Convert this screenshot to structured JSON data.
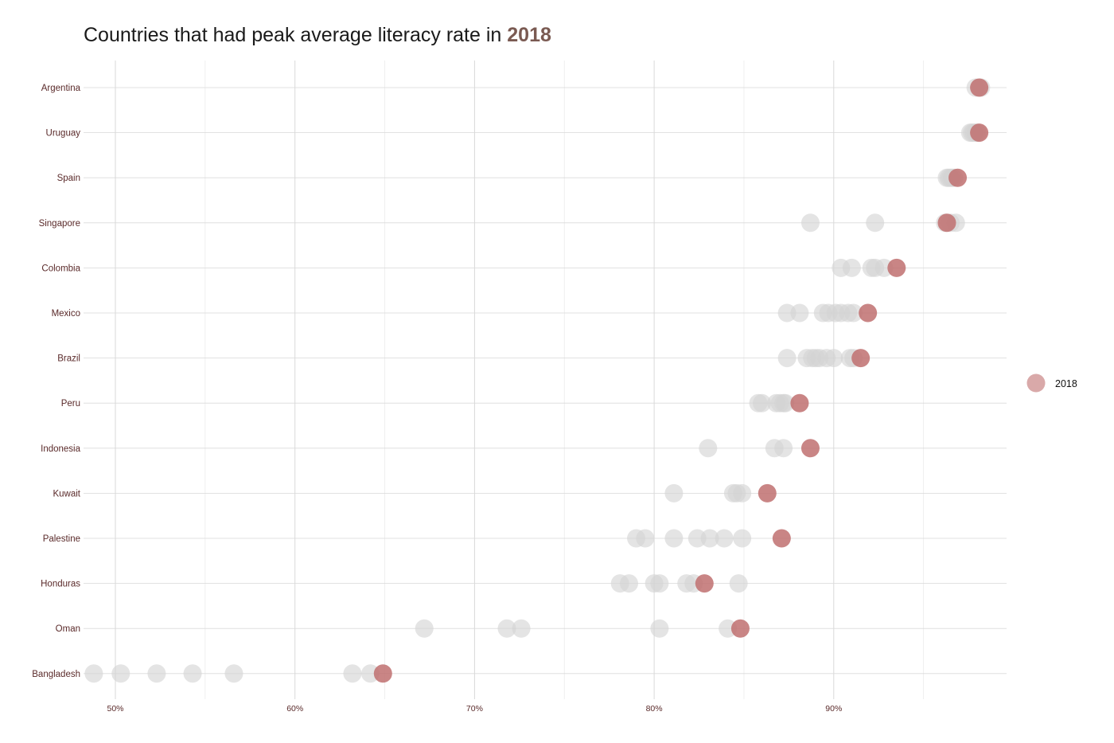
{
  "title_prefix": "Countries that had peak average literacy rate in",
  "title_highlight": "2018",
  "colors": {
    "highlight": "#c07070",
    "other": "#d4d4d4",
    "title_highlight": "#7a5a52",
    "grid_major": "#d9d9d9",
    "grid_minor": "#ebebeb",
    "label": "#5a2a2a"
  },
  "chart_data": {
    "type": "scatter",
    "title": "Countries that had peak average literacy rate in 2018",
    "xlabel": "",
    "ylabel": "",
    "xlim": [
      48.3,
      98.8
    ],
    "x_ticks": [
      50,
      60,
      70,
      80,
      90
    ],
    "x_tick_labels": [
      "50%",
      "60%",
      "70%",
      "80%",
      "90%"
    ],
    "grid": true,
    "legend": {
      "position": "right",
      "entries": [
        "2018"
      ]
    },
    "categories": [
      "Argentina",
      "Uruguay",
      "Spain",
      "Singapore",
      "Colombia",
      "Mexico",
      "Brazil",
      "Peru",
      "Indonesia",
      "Kuwait",
      "Palestine",
      "Honduras",
      "Oman",
      "Bangladesh"
    ],
    "series": [
      {
        "name": "2018",
        "values": [
          98.1,
          98.1,
          96.9,
          96.3,
          93.5,
          91.9,
          91.5,
          88.1,
          88.7,
          86.3,
          87.1,
          82.8,
          84.8,
          64.9
        ]
      },
      {
        "values": [
          [
            97.9,
            98.2
          ],
          [
            97.6,
            97.7,
            97.8,
            97.9,
            98.0
          ],
          [
            96.3,
            96.4,
            96.5,
            96.6,
            96.7
          ],
          [
            88.7,
            92.3,
            96.2,
            96.5,
            96.8
          ],
          [
            90.4,
            91.0,
            92.1,
            92.3,
            92.8
          ],
          [
            87.4,
            88.1,
            89.4,
            89.7,
            90.1,
            90.4,
            90.8,
            91.1
          ],
          [
            87.4,
            88.5,
            88.8,
            89.0,
            89.2,
            89.6,
            90.0,
            90.9,
            91.1
          ],
          [
            85.8,
            86.0,
            86.8,
            87.0,
            87.2,
            87.3
          ],
          [
            83.0,
            86.7,
            87.2
          ],
          [
            81.1,
            84.4,
            84.6,
            84.9
          ],
          [
            79.0,
            79.5,
            81.1,
            82.4,
            83.1,
            83.9,
            84.9
          ],
          [
            78.1,
            78.6,
            80.0,
            80.3,
            81.8,
            82.2,
            84.7
          ],
          [
            67.2,
            71.8,
            72.6,
            80.3,
            84.1
          ],
          [
            48.8,
            50.3,
            52.3,
            54.3,
            56.6,
            63.2,
            64.2
          ]
        ]
      }
    ]
  }
}
